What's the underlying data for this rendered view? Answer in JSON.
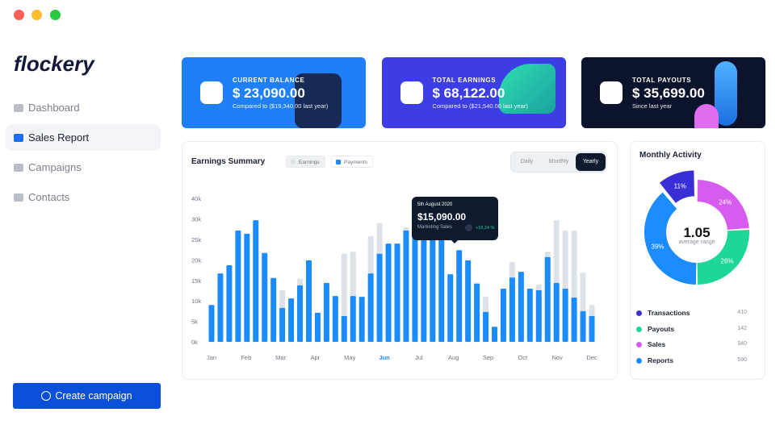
{
  "sidebar": {
    "logo": "flockery",
    "nav": [
      "Dashboard",
      "Sales Report",
      "Campaigns",
      "Contacts"
    ],
    "active": 1,
    "button": "Create campaign"
  },
  "cards": [
    {
      "label": "CURRENT BALANCE",
      "value": "$ 23,090.00",
      "note": "Compared to ($19,340.00 last year)",
      "color": "#1e7ff7"
    },
    {
      "label": "TOTAL EARNINGS",
      "value": "$ 68,122.00",
      "note": "Compared to ($21,540.00 last year)",
      "color": "#3c3de4"
    },
    {
      "label": "TOTAL PAYOUTS",
      "value": "$ 35,699.00",
      "note": "Since last year",
      "color": "#0c142d"
    }
  ],
  "earnings": {
    "title": "Earnings Summary",
    "tabs": [
      "Daily",
      "Monthly",
      "Yearly"
    ],
    "active_tab": 2,
    "y_labels": [
      "40k",
      "30k",
      "25k",
      "20k",
      "15k",
      "10k",
      "5k",
      "0k"
    ],
    "months": [
      "Jan",
      "Feb",
      "Mar",
      "Apr",
      "May",
      "Jun",
      "Jul",
      "Aug",
      "Sep",
      "Oct",
      "Nov",
      "Dec"
    ],
    "highlight_month": 5,
    "tooltip": {
      "date": "5th August 2020",
      "value": "$15,090.00",
      "caption": "Marketing Sales",
      "change": "+16,24 %"
    },
    "chart_data": {
      "type": "bar",
      "series": [
        {
          "name": "Earnings",
          "color": "#dde2e9",
          "values": [
            null,
            null,
            null,
            null,
            null,
            null,
            null,
            null,
            12.6,
            null,
            15.4,
            null,
            null,
            null,
            null,
            21.5,
            22,
            null,
            25.8,
            29,
            null,
            null,
            28,
            null,
            null,
            27,
            27,
            null,
            null,
            null,
            14.5,
            11,
            null,
            null,
            19.5,
            null,
            null,
            14,
            22,
            29.7,
            27.2,
            27.2,
            16.9,
            9
          ]
        },
        {
          "name": "Payments",
          "color": "#1a8cff",
          "values": [
            9,
            16.7,
            18.7,
            27.2,
            26.4,
            29.7,
            21.7,
            15.6,
            8.3,
            10.6,
            13.8,
            19.9,
            7.1,
            14.4,
            11.2,
            6.3,
            11.2,
            11,
            16.7,
            21.5,
            24,
            24,
            27.2,
            26.8,
            27,
            26,
            25,
            16.5,
            22.4,
            19.9,
            14.2,
            7.3,
            3.7,
            13,
            15.7,
            17.1,
            13,
            12.6,
            20.7,
            14.4,
            13,
            10.8,
            7.5,
            6.3
          ]
        }
      ]
    }
  },
  "activity": {
    "title": "Monthly Activity",
    "center_value": "1.05",
    "center_label": "average range",
    "chart_data": {
      "type": "pie",
      "categories": [
        "Transactions",
        "Payouts",
        "Sales",
        "Reports"
      ],
      "values": [
        11,
        26,
        24,
        39
      ],
      "value_labels": [
        "11%",
        "26%",
        "24%",
        "39%"
      ],
      "colors": [
        "#3a2fd6",
        "#1fd69a",
        "#d65cf0",
        "#1a8cff"
      ],
      "counts": [
        "410",
        "142",
        "340",
        "590"
      ]
    }
  }
}
